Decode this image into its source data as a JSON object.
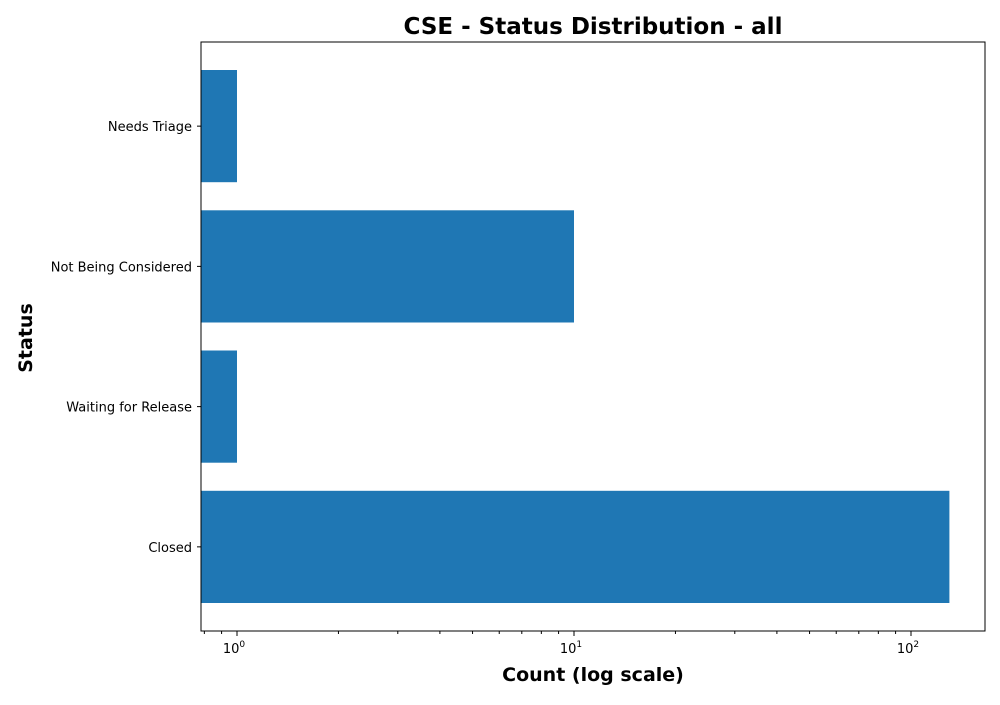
{
  "chart_data": {
    "type": "bar",
    "orientation": "horizontal",
    "title": "CSE - Status Distribution - all",
    "xlabel": "Count (log scale)",
    "ylabel": "Status",
    "xscale": "log",
    "xlim": [
      0.8,
      160
    ],
    "categories": [
      "Needs Triage",
      "Not Being Considered",
      "Waiting for Release",
      "Closed"
    ],
    "values": [
      1,
      10,
      1,
      130
    ],
    "x_ticks": [
      {
        "base": "10",
        "exp": "0",
        "value": 1
      },
      {
        "base": "10",
        "exp": "1",
        "value": 10
      },
      {
        "base": "10",
        "exp": "2",
        "value": 100
      }
    ],
    "grid": false,
    "legend": "none",
    "bar_color": "#1f77b4"
  }
}
